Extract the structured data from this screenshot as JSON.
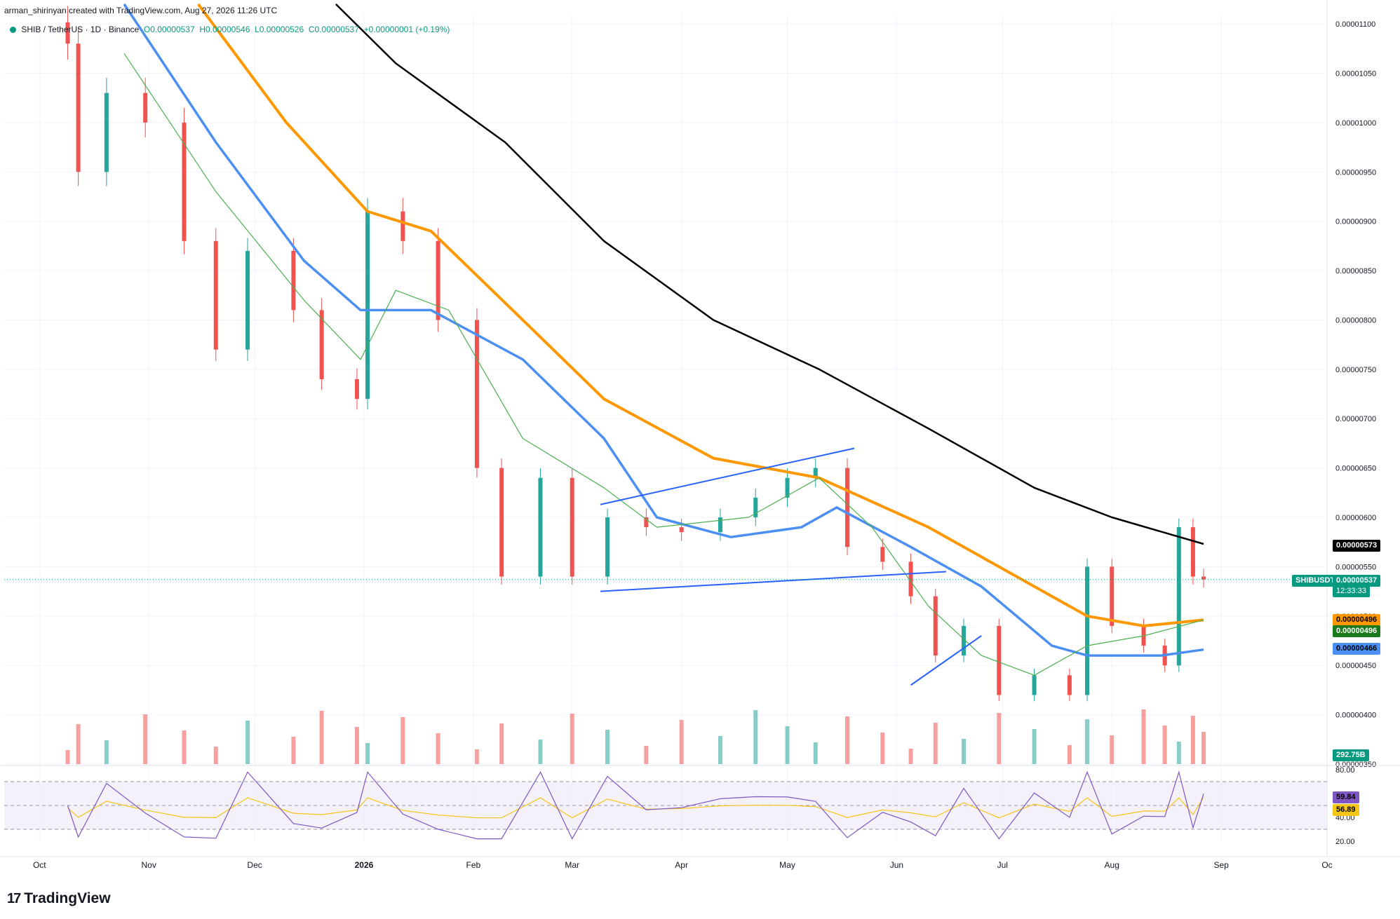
{
  "header": {
    "attribution": "arman_shirinyan created with TradingView.com, Aug 27, 2026 11:26 UTC",
    "symbol_line": "SHIB / TetherUS · 1D · Binance",
    "ohlc_o": "O0.00000537",
    "ohlc_h": "H0.00000546",
    "ohlc_l": "L0.00000526",
    "ohlc_c": "C0.00000537",
    "change": "+0.00000001 (+0.19%)"
  },
  "brand": {
    "logo_text": "TradingView"
  },
  "colors": {
    "up": "#26a69a",
    "down": "#ef5350",
    "ma_200": "#000000",
    "ma_100": "#ff9800",
    "ma_50": "#4c8ff2",
    "ma_20": "#4caf50",
    "trendline": "#2962ff",
    "rsi": "#7e57c2",
    "rsi_ma": "#f5c518"
  },
  "price_axis": {
    "labels": [
      "0.00001100",
      "0.00001050",
      "0.00001000",
      "0.00000950",
      "0.00000900",
      "0.00000850",
      "0.00000800",
      "0.00000750",
      "0.00000700",
      "0.00000650",
      "0.00000600",
      "0.00000550",
      "0.00000500",
      "0.00000450",
      "0.00000400",
      "0.00000350"
    ]
  },
  "time_axis": {
    "labels": [
      "Oct",
      "Nov",
      "Dec",
      "2026",
      "Feb",
      "Mar",
      "Apr",
      "May",
      "Jun",
      "Jul",
      "Aug",
      "Sep",
      "Oc"
    ]
  },
  "rsi_axis": {
    "labels": [
      "80.00",
      "40.00",
      "20.00"
    ]
  },
  "tags": {
    "ma200": "0.00000573",
    "last_symbol": "SHIBUSDT",
    "last_price": "0.00000537",
    "countdown": "12:33:33",
    "ma100": "0.00000496",
    "ma20": "0.00000496",
    "ma50": "0.00000466",
    "volume": "292.75B",
    "rsi": "59.84",
    "rsi_ma": "56.89"
  },
  "chart_data": {
    "type": "candlestick",
    "ylim": [
      3.5e-06,
      1.11e-05
    ],
    "x_range": [
      "2025-09-21",
      "2026-10-01"
    ],
    "candles": [
      {
        "date": "2025-10-09",
        "close": 1.08e-05
      },
      {
        "date": "2025-10-12",
        "close": 9.5e-06
      },
      {
        "date": "2025-10-20",
        "close": 1.03e-05
      },
      {
        "date": "2025-10-31",
        "close": 1e-05
      },
      {
        "date": "2025-11-11",
        "close": 8.8e-06
      },
      {
        "date": "2025-11-20",
        "close": 7.7e-06
      },
      {
        "date": "2025-11-29",
        "close": 8.7e-06
      },
      {
        "date": "2025-12-12",
        "close": 8.1e-06
      },
      {
        "date": "2025-12-20",
        "close": 7.4e-06
      },
      {
        "date": "2025-12-30",
        "close": 7.2e-06
      },
      {
        "date": "2026-01-02",
        "close": 9.1e-06
      },
      {
        "date": "2026-01-12",
        "close": 8.8e-06
      },
      {
        "date": "2026-01-22",
        "close": 8e-06
      },
      {
        "date": "2026-02-02",
        "close": 6.5e-06
      },
      {
        "date": "2026-02-09",
        "close": 5.4e-06
      },
      {
        "date": "2026-02-20",
        "close": 6.4e-06
      },
      {
        "date": "2026-03-01",
        "close": 5.4e-06
      },
      {
        "date": "2026-03-11",
        "close": 6e-06
      },
      {
        "date": "2026-03-22",
        "close": 5.9e-06
      },
      {
        "date": "2026-04-01",
        "close": 5.85e-06
      },
      {
        "date": "2026-04-12",
        "close": 6e-06
      },
      {
        "date": "2026-04-22",
        "close": 6.2e-06
      },
      {
        "date": "2026-05-01",
        "close": 6.4e-06
      },
      {
        "date": "2026-05-09",
        "close": 6.5e-06
      },
      {
        "date": "2026-05-18",
        "close": 5.7e-06
      },
      {
        "date": "2026-05-28",
        "close": 5.55e-06
      },
      {
        "date": "2026-06-05",
        "close": 5.2e-06
      },
      {
        "date": "2026-06-12",
        "close": 4.6e-06
      },
      {
        "date": "2026-06-20",
        "close": 4.9e-06
      },
      {
        "date": "2026-06-30",
        "close": 4.2e-06
      },
      {
        "date": "2026-07-10",
        "close": 4.4e-06
      },
      {
        "date": "2026-07-20",
        "close": 4.2e-06
      },
      {
        "date": "2026-07-25",
        "close": 5.5e-06
      },
      {
        "date": "2026-08-01",
        "close": 4.9e-06
      },
      {
        "date": "2026-08-10",
        "close": 4.7e-06
      },
      {
        "date": "2026-08-16",
        "close": 4.5e-06
      },
      {
        "date": "2026-08-20",
        "close": 5.9e-06
      },
      {
        "date": "2026-08-24",
        "close": 5.4e-06
      },
      {
        "date": "2026-08-27",
        "close": 5.37e-06
      }
    ],
    "moving_averages": [
      {
        "name": "MA200",
        "points": [
          [
            "2025-12-24",
            1.12e-05
          ],
          [
            "2026-01-10",
            1.06e-05
          ],
          [
            "2026-02-10",
            9.8e-06
          ],
          [
            "2026-03-10",
            8.8e-06
          ],
          [
            "2026-04-10",
            8e-06
          ],
          [
            "2026-05-10",
            7.5e-06
          ],
          [
            "2026-06-10",
            6.9e-06
          ],
          [
            "2026-07-10",
            6.3e-06
          ],
          [
            "2026-08-01",
            6e-06
          ],
          [
            "2026-08-27",
            5.73e-06
          ]
        ]
      },
      {
        "name": "MA100",
        "points": [
          [
            "2025-11-15",
            1.12e-05
          ],
          [
            "2025-12-10",
            1e-05
          ],
          [
            "2026-01-02",
            9.1e-06
          ],
          [
            "2026-01-20",
            8.9e-06
          ],
          [
            "2026-02-15",
            8e-06
          ],
          [
            "2026-03-10",
            7.2e-06
          ],
          [
            "2026-04-10",
            6.6e-06
          ],
          [
            "2026-05-10",
            6.4e-06
          ],
          [
            "2026-06-10",
            5.9e-06
          ],
          [
            "2026-07-10",
            5.3e-06
          ],
          [
            "2026-07-25",
            5e-06
          ],
          [
            "2026-08-10",
            4.9e-06
          ],
          [
            "2026-08-27",
            4.96e-06
          ]
        ]
      },
      {
        "name": "MA50",
        "points": [
          [
            "2025-10-25",
            1.12e-05
          ],
          [
            "2025-11-20",
            9.8e-06
          ],
          [
            "2025-12-15",
            8.6e-06
          ],
          [
            "2025-12-31",
            8.1e-06
          ],
          [
            "2026-01-20",
            8.1e-06
          ],
          [
            "2026-02-15",
            7.6e-06
          ],
          [
            "2026-03-10",
            6.8e-06
          ],
          [
            "2026-03-25",
            6e-06
          ],
          [
            "2026-04-15",
            5.8e-06
          ],
          [
            "2026-05-05",
            5.9e-06
          ],
          [
            "2026-05-15",
            6.1e-06
          ],
          [
            "2026-06-05",
            5.7e-06
          ],
          [
            "2026-06-25",
            5.3e-06
          ],
          [
            "2026-07-15",
            4.7e-06
          ],
          [
            "2026-07-25",
            4.6e-06
          ],
          [
            "2026-08-15",
            4.6e-06
          ],
          [
            "2026-08-27",
            4.66e-06
          ]
        ]
      },
      {
        "name": "MA20",
        "points": [
          [
            "2025-10-25",
            1.07e-05
          ],
          [
            "2025-11-20",
            9.3e-06
          ],
          [
            "2025-12-15",
            8.2e-06
          ],
          [
            "2025-12-31",
            7.6e-06
          ],
          [
            "2026-01-10",
            8.3e-06
          ],
          [
            "2026-01-25",
            8.1e-06
          ],
          [
            "2026-02-15",
            6.8e-06
          ],
          [
            "2026-03-10",
            6.3e-06
          ],
          [
            "2026-03-25",
            5.9e-06
          ],
          [
            "2026-04-20",
            6e-06
          ],
          [
            "2026-05-10",
            6.4e-06
          ],
          [
            "2026-05-25",
            5.9e-06
          ],
          [
            "2026-06-10",
            5.1e-06
          ],
          [
            "2026-06-25",
            4.6e-06
          ],
          [
            "2026-07-10",
            4.4e-06
          ],
          [
            "2026-07-25",
            4.7e-06
          ],
          [
            "2026-08-10",
            4.8e-06
          ],
          [
            "2026-08-27",
            4.96e-06
          ]
        ]
      }
    ],
    "trendlines": [
      {
        "from": [
          "2026-03-09",
          6.13e-06
        ],
        "to": [
          "2026-05-20",
          6.7e-06
        ]
      },
      {
        "from": [
          "2026-03-09",
          5.25e-06
        ],
        "to": [
          "2026-06-15",
          5.45e-06
        ]
      },
      {
        "from": [
          "2026-06-05",
          4.3e-06
        ],
        "to": [
          "2026-06-25",
          4.8e-06
        ]
      }
    ],
    "rsi": {
      "ylim": [
        20,
        80
      ],
      "overbought": 70,
      "oversold": 30,
      "last": 59.84,
      "ma_last": 56.89
    }
  }
}
